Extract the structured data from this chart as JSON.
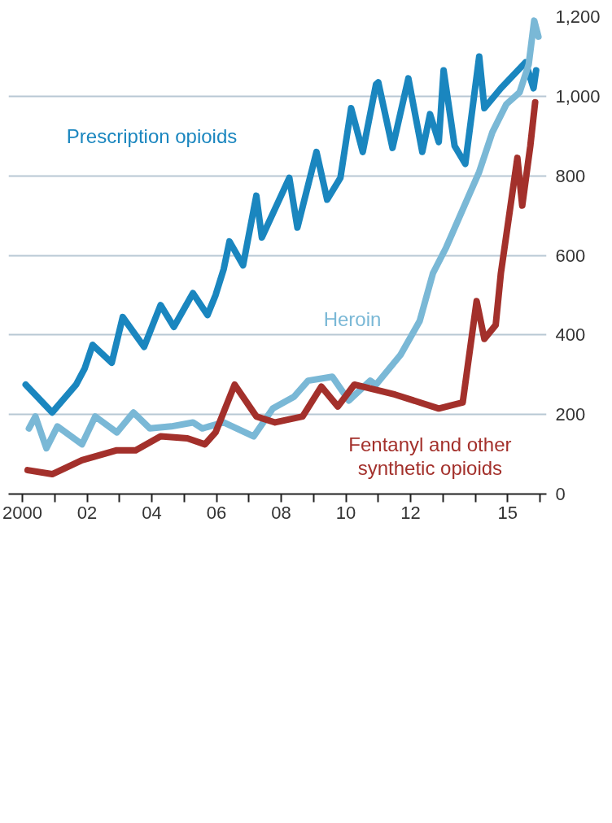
{
  "chart_data": {
    "type": "line",
    "xlim": [
      1999.57,
      2016.2
    ],
    "ylim": [
      0,
      1200
    ],
    "xticks": [
      2000,
      {
        "value": 2001,
        "label": null
      },
      {
        "value": 2002,
        "label": "02"
      },
      {
        "value": 2003,
        "label": null
      },
      {
        "value": 2004,
        "label": "04"
      },
      {
        "value": 2005,
        "label": null
      },
      {
        "value": 2006,
        "label": "06"
      },
      {
        "value": 2007,
        "label": null
      },
      {
        "value": 2008,
        "label": "08"
      },
      {
        "value": 2009,
        "label": null
      },
      {
        "value": 2010,
        "label": "10"
      },
      {
        "value": 2011,
        "label": null
      },
      {
        "value": 2012,
        "label": "12"
      },
      {
        "value": 2013,
        "label": null
      },
      {
        "value": 2014,
        "label": null
      },
      {
        "value": 2015,
        "label": "15"
      },
      {
        "value": 2016,
        "label": null
      }
    ],
    "yticks": [
      0,
      200,
      400,
      600,
      800,
      {
        "value": 1000,
        "label": "1,000"
      },
      {
        "value": 1200,
        "label": "1,200"
      }
    ],
    "grid": "y",
    "series": [
      {
        "name": "Prescription opioids",
        "color": "#1a86bf",
        "x": [
          2000.1,
          2000.92,
          2001.66,
          2001.92,
          2002.17,
          2002.76,
          2003.1,
          2003.76,
          2004.27,
          2004.68,
          2005.27,
          2005.72,
          2005.97,
          2006.22,
          2006.4,
          2006.82,
          2007.23,
          2007.4,
          2008.25,
          2008.5,
          2009.09,
          2009.42,
          2009.83,
          2010.16,
          2010.52,
          2010.93,
          2011.0,
          2011.44,
          2011.93,
          2012.36,
          2012.6,
          2012.87,
          2013.02,
          2013.36,
          2013.69,
          2014.12,
          2014.28,
          2014.79,
          2015.55,
          2015.8,
          2015.88
        ],
        "values": [
          275,
          205,
          275,
          315,
          375,
          330,
          445,
          370,
          475,
          420,
          505,
          450,
          500,
          565,
          635,
          575,
          750,
          645,
          795,
          670,
          860,
          740,
          795,
          970,
          860,
          1030,
          1035,
          870,
          1045,
          860,
          955,
          885,
          1065,
          875,
          830,
          1100,
          970,
          1020,
          1085,
          1020,
          1065
        ]
      },
      {
        "name": "Heroin",
        "color": "#7ab8d6",
        "x": [
          2000.2,
          2000.4,
          2000.74,
          2001.08,
          2001.84,
          2002.25,
          2002.92,
          2003.43,
          2003.94,
          2004.6,
          2005.27,
          2005.56,
          2006.22,
          2007.15,
          2007.74,
          2008.4,
          2008.83,
          2009.58,
          2010.09,
          2010.75,
          2010.93,
          2011.69,
          2012.28,
          2012.69,
          2013.1,
          2013.69,
          2014.12,
          2014.53,
          2014.96,
          2015.37,
          2015.65,
          2015.82,
          2015.95
        ],
        "values": [
          165,
          195,
          115,
          170,
          125,
          195,
          155,
          205,
          165,
          170,
          180,
          165,
          180,
          145,
          215,
          245,
          285,
          295,
          235,
          285,
          275,
          350,
          435,
          555,
          620,
          730,
          810,
          910,
          980,
          1010,
          1080,
          1190,
          1150
        ]
      },
      {
        "name": "Fentanyl and other\nsynthetic opioids",
        "color": "#a3302b",
        "x": [
          2000.16,
          2000.92,
          2001.84,
          2002.92,
          2003.5,
          2004.27,
          2005.1,
          2005.64,
          2005.97,
          2006.56,
          2007.23,
          2007.81,
          2008.66,
          2009.24,
          2009.75,
          2010.26,
          2011.52,
          2012.87,
          2013.61,
          2014.04,
          2014.28,
          2014.63,
          2014.79,
          2015.3,
          2015.45,
          2015.7,
          2015.85
        ],
        "values": [
          60,
          50,
          85,
          110,
          110,
          145,
          140,
          125,
          155,
          275,
          195,
          180,
          195,
          270,
          220,
          275,
          250,
          215,
          230,
          485,
          390,
          425,
          555,
          845,
          725,
          875,
          985
        ]
      }
    ]
  }
}
